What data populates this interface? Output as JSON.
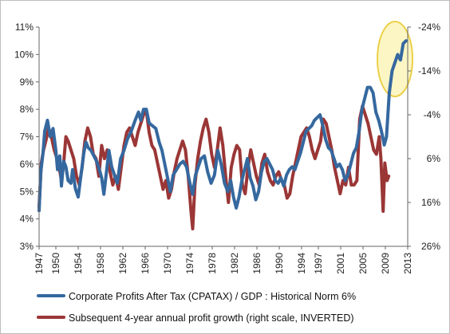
{
  "chart_data": {
    "type": "line",
    "title": "",
    "xlabel": "",
    "ylabel": "",
    "x_ticks": [
      "1947",
      "1950",
      "1954",
      "1958",
      "1962",
      "1966",
      "1970",
      "1974",
      "1978",
      "1982",
      "1986",
      "1990",
      "1994",
      "1997",
      "2001",
      "2005",
      "2009",
      "2013"
    ],
    "xlim": [
      1947,
      2013
    ],
    "y_left": {
      "ticks": [
        "3%",
        "4%",
        "5%",
        "6%",
        "7%",
        "8%",
        "9%",
        "10%",
        "11%"
      ],
      "range": [
        3,
        11
      ]
    },
    "y_right": {
      "ticks": [
        "-24%",
        "-14%",
        "-4%",
        "6%",
        "16%",
        "26%"
      ],
      "range": [
        -24,
        26
      ],
      "inverted": true
    },
    "legend_position": "bottom",
    "grid": false,
    "series": [
      {
        "name": "Corporate Profits After Tax (CPATAX) / GDP : Historical Norm 6%",
        "axis": "left",
        "color": "#35689f",
        "x": [
          1947.0,
          1947.3,
          1947.7,
          1948.0,
          1948.5,
          1949.0,
          1949.5,
          1950.0,
          1950.3,
          1950.7,
          1951.0,
          1951.4,
          1951.8,
          1952.2,
          1952.7,
          1953.0,
          1953.5,
          1954.0,
          1954.5,
          1955.0,
          1955.4,
          1955.8,
          1956.3,
          1956.8,
          1957.3,
          1957.8,
          1958.2,
          1958.6,
          1959.0,
          1959.5,
          1960.0,
          1960.5,
          1961.0,
          1961.6,
          1962.2,
          1962.8,
          1963.5,
          1964.2,
          1964.8,
          1965.2,
          1965.7,
          1966.2,
          1966.7,
          1967.3,
          1967.9,
          1968.5,
          1969.0,
          1969.5,
          1970.0,
          1970.5,
          1971.0,
          1971.6,
          1972.2,
          1972.8,
          1973.4,
          1974.0,
          1974.5,
          1975.0,
          1975.5,
          1976.0,
          1976.6,
          1977.2,
          1977.8,
          1978.4,
          1979.0,
          1979.6,
          1980.2,
          1980.8,
          1981.3,
          1981.8,
          1982.3,
          1982.8,
          1983.3,
          1983.8,
          1984.3,
          1984.8,
          1985.3,
          1985.8,
          1986.3,
          1986.8,
          1987.3,
          1987.8,
          1988.3,
          1988.8,
          1989.3,
          1989.8,
          1990.3,
          1990.8,
          1991.3,
          1991.8,
          1992.3,
          1992.8,
          1993.3,
          1993.8,
          1994.3,
          1994.8,
          1995.3,
          1995.8,
          1996.3,
          1996.8,
          1997.3,
          1997.8,
          1998.3,
          1998.8,
          1999.3,
          1999.8,
          2000.3,
          2000.8,
          2001.3,
          2001.8,
          2002.3,
          2002.8,
          2003.3,
          2003.8,
          2004.3,
          2004.8,
          2005.3,
          2005.8,
          2006.3,
          2006.8,
          2007.3,
          2007.8,
          2008.3,
          2008.8,
          2009.2,
          2009.7,
          2010.2,
          2010.7,
          2011.2,
          2011.7,
          2012.2,
          2012.7
        ],
        "values": [
          4.3,
          5.7,
          6.4,
          7.2,
          7.6,
          7.0,
          7.3,
          6.5,
          5.8,
          6.3,
          5.2,
          6.1,
          5.9,
          5.4,
          5.3,
          5.8,
          5.1,
          4.8,
          5.6,
          6.4,
          6.8,
          6.6,
          6.5,
          6.3,
          6.1,
          5.8,
          5.5,
          4.9,
          5.6,
          6.5,
          5.9,
          5.6,
          5.3,
          6.2,
          6.5,
          6.9,
          7.2,
          7.6,
          7.9,
          7.6,
          8.0,
          8.0,
          7.5,
          7.4,
          7.3,
          6.8,
          6.5,
          6.0,
          5.5,
          5.0,
          5.6,
          5.8,
          6.0,
          6.1,
          5.9,
          5.3,
          4.9,
          5.6,
          5.9,
          6.2,
          6.3,
          5.7,
          5.3,
          5.6,
          6.5,
          6.0,
          5.3,
          5.0,
          5.4,
          4.8,
          4.4,
          4.8,
          5.4,
          5.8,
          6.2,
          5.5,
          5.2,
          4.7,
          5.0,
          5.7,
          6.1,
          6.2,
          6.0,
          5.8,
          5.4,
          5.3,
          5.5,
          5.2,
          5.6,
          5.8,
          5.9,
          5.8,
          6.1,
          6.4,
          6.8,
          7.2,
          7.3,
          7.4,
          7.6,
          7.7,
          7.8,
          7.4,
          6.9,
          6.6,
          6.5,
          6.2,
          5.9,
          6.0,
          5.8,
          5.4,
          5.6,
          6.0,
          6.4,
          6.6,
          7.2,
          8.0,
          8.4,
          8.8,
          8.8,
          8.6,
          7.9,
          7.6,
          7.2,
          6.7,
          7.0,
          8.6,
          9.4,
          9.7,
          10.0,
          9.8,
          10.4,
          10.5
        ]
      },
      {
        "name": "Subsequent 4-year annual profit growth (right scale, INVERTED)",
        "axis": "right",
        "color": "#9b3636",
        "x": [
          1947.0,
          1947.4,
          1947.8,
          1948.2,
          1948.7,
          1949.2,
          1949.7,
          1950.2,
          1950.6,
          1951.0,
          1951.4,
          1951.8,
          1952.2,
          1952.7,
          1953.2,
          1953.7,
          1954.2,
          1954.7,
          1955.2,
          1955.7,
          1956.2,
          1956.7,
          1957.2,
          1957.7,
          1958.2,
          1958.7,
          1959.2,
          1959.7,
          1960.2,
          1960.7,
          1961.2,
          1961.7,
          1962.2,
          1962.7,
          1963.2,
          1963.7,
          1964.2,
          1964.7,
          1965.2,
          1965.7,
          1966.2,
          1966.7,
          1967.2,
          1967.7,
          1968.2,
          1968.7,
          1969.2,
          1969.7,
          1970.2,
          1970.7,
          1971.2,
          1971.7,
          1972.2,
          1972.7,
          1973.2,
          1973.7,
          1974.2,
          1974.5,
          1974.9,
          1975.4,
          1975.9,
          1976.4,
          1976.9,
          1977.4,
          1977.9,
          1978.4,
          1978.9,
          1979.4,
          1979.9,
          1980.4,
          1980.9,
          1981.4,
          1981.9,
          1982.4,
          1982.9,
          1983.4,
          1983.9,
          1984.4,
          1984.9,
          1985.4,
          1985.9,
          1986.4,
          1986.9,
          1987.4,
          1987.9,
          1988.4,
          1988.9,
          1989.4,
          1989.9,
          1990.4,
          1990.9,
          1991.4,
          1991.9,
          1992.4,
          1992.9,
          1993.4,
          1993.9,
          1994.4,
          1994.9,
          1995.4,
          1995.9,
          1996.4,
          1996.9,
          1997.4,
          1997.9,
          1998.4,
          1998.9,
          1999.4,
          1999.9,
          2000.4,
          2000.9,
          2001.4,
          2001.9,
          2002.4,
          2002.9,
          2003.4,
          2003.9,
          2004.4,
          2004.9,
          2005.4,
          2005.9,
          2006.4,
          2006.9,
          2007.4,
          2007.9,
          2008.2,
          2008.6,
          2008.9,
          2009.3,
          2009.6
        ],
        "values": [
          17,
          7,
          4,
          2,
          -1,
          1,
          4,
          6,
          8,
          11,
          7,
          1,
          2,
          4,
          6,
          10,
          12,
          8,
          2,
          -1,
          1,
          5,
          6,
          10,
          3,
          6,
          4,
          9,
          12,
          10,
          13,
          8,
          3,
          0,
          -1,
          1,
          3,
          0,
          -2,
          -4,
          -5,
          0,
          3,
          4,
          7,
          10,
          13,
          11,
          15,
          13,
          9,
          6,
          4,
          2,
          4,
          10,
          18,
          22,
          12,
          6,
          2,
          -1,
          -3,
          0,
          5,
          8,
          4,
          -1,
          3,
          10,
          16,
          8,
          5,
          3,
          4,
          12,
          14,
          8,
          4,
          7,
          10,
          12,
          7,
          5,
          9,
          11,
          12,
          10,
          9,
          11,
          12,
          15,
          14,
          10,
          7,
          4,
          1,
          0,
          -1,
          1,
          4,
          6,
          4,
          2,
          -3,
          -2,
          1,
          4,
          8,
          11,
          14,
          11,
          12,
          8,
          12,
          12,
          11,
          -3,
          -6,
          -4,
          -2,
          1,
          4,
          5,
          1,
          6,
          18,
          7,
          11,
          10
        ]
      }
    ]
  }
}
